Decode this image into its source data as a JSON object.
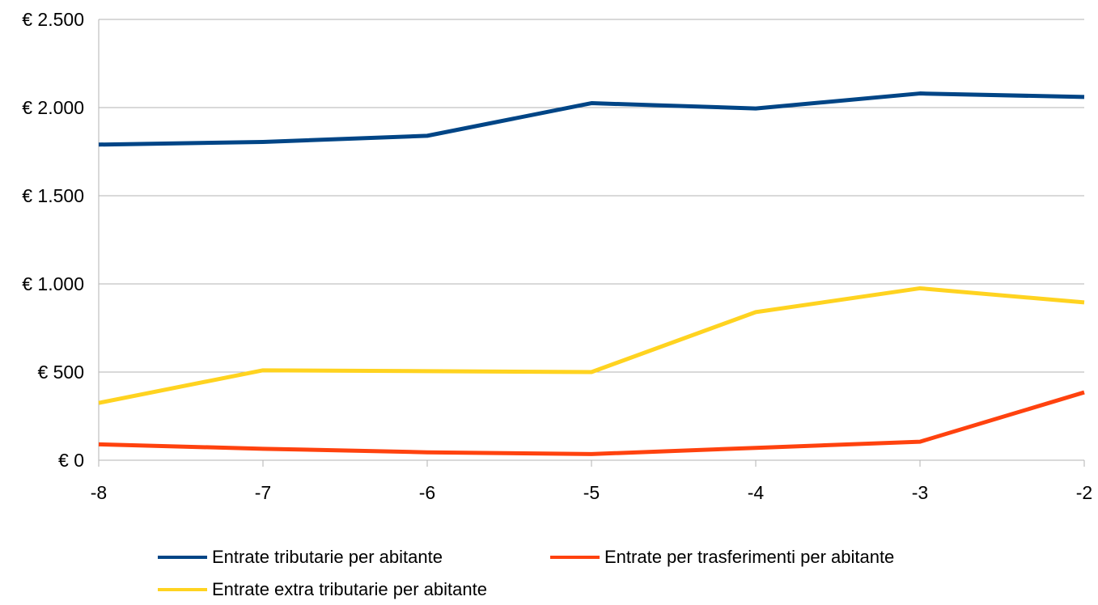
{
  "chart_data": {
    "type": "line",
    "title": "",
    "xlabel": "",
    "ylabel": "",
    "x": [
      -8,
      -7,
      -6,
      -5,
      -4,
      -3,
      -2
    ],
    "x_tick_labels": [
      "-8",
      "-7",
      "-6",
      "-5",
      "-4",
      "-3",
      "-2"
    ],
    "xlim": [
      -8,
      -2
    ],
    "ylim": [
      0,
      2500
    ],
    "y_ticks": [
      0,
      500,
      1000,
      1500,
      2000,
      2500
    ],
    "y_tick_labels": [
      "€ 0",
      "€ 500",
      "€ 1.000",
      "€ 1.500",
      "€ 2.000",
      "€ 2.500"
    ],
    "grid": "horizontal",
    "legend_position": "bottom",
    "series": [
      {
        "name": "Entrate tributarie per abitante",
        "color": "#004586",
        "values": [
          1790,
          1805,
          1840,
          2025,
          1995,
          2080,
          2060
        ]
      },
      {
        "name": "Entrate per trasferimenti per abitante",
        "color": "#ff420e",
        "values": [
          90,
          65,
          45,
          35,
          70,
          105,
          385
        ]
      },
      {
        "name": "Entrate extra tributarie per abitante",
        "color": "#ffd320",
        "values": [
          325,
          510,
          505,
          500,
          840,
          975,
          895
        ]
      }
    ]
  }
}
